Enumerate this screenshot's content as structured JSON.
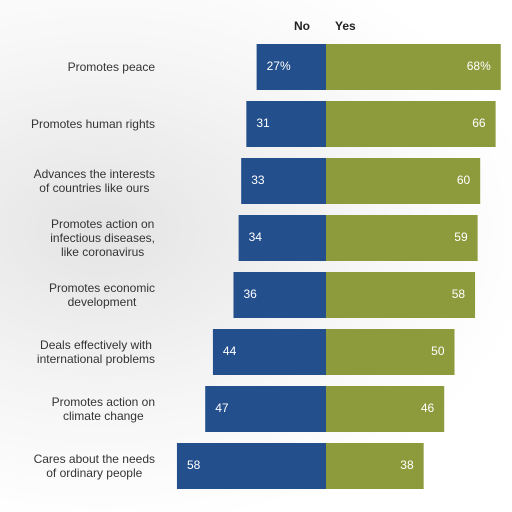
{
  "chart_data": {
    "type": "diverging-bar",
    "categories": [
      "Promotes peace",
      "Promotes human rights",
      "Advances the interests\nof countries like ours",
      "Promotes action on\ninfectious diseases,\nlike coronavirus",
      "Promotes economic\ndevelopment",
      "Deals effectively with\ninternational problems",
      "Promotes action on\nclimate change",
      "Cares about the needs\nof ordinary people"
    ],
    "series": [
      {
        "name": "No",
        "color": "#234f8d",
        "values": [
          27,
          31,
          33,
          34,
          36,
          44,
          47,
          58
        ],
        "value_labels": [
          "27%",
          "31",
          "33",
          "34",
          "36",
          "44",
          "47",
          "58"
        ]
      },
      {
        "name": "Yes",
        "color": "#8d9b3c",
        "values": [
          68,
          66,
          60,
          59,
          58,
          50,
          46,
          38
        ],
        "value_labels": [
          "68%",
          "66",
          "60",
          "59",
          "58",
          "50",
          "46",
          "38"
        ]
      }
    ]
  }
}
